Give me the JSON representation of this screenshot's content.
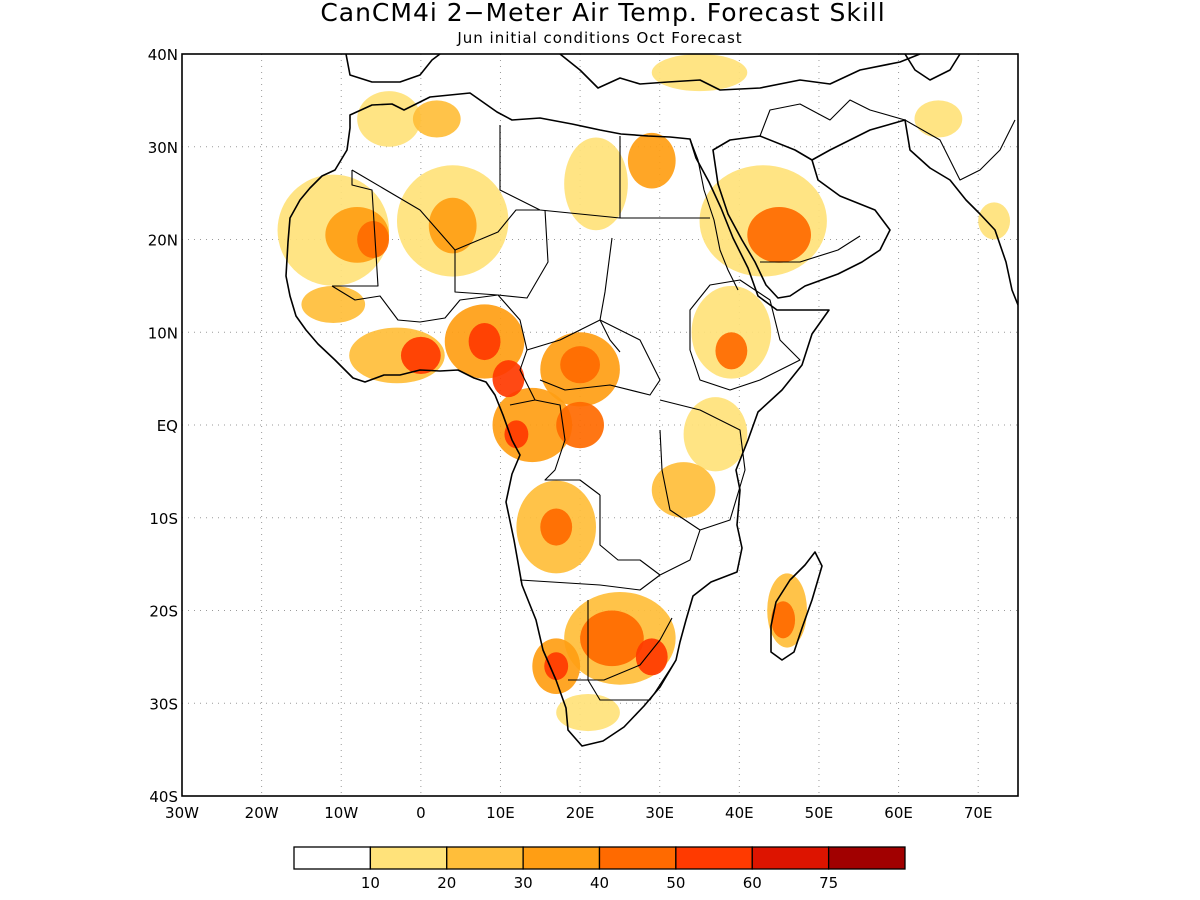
{
  "title": "CanCM4i 2−Meter Air Temp. Forecast Skill",
  "subtitle": "Jun initial conditions  Oct Forecast",
  "map": {
    "region": "Africa",
    "lon_range": [
      -30,
      75
    ],
    "lat_range": [
      -40,
      40
    ],
    "grid": true,
    "lon_ticks": [
      {
        "value": -30,
        "label": "30W"
      },
      {
        "value": -20,
        "label": "20W"
      },
      {
        "value": -10,
        "label": "10W"
      },
      {
        "value": 0,
        "label": "0"
      },
      {
        "value": 10,
        "label": "10E"
      },
      {
        "value": 20,
        "label": "20E"
      },
      {
        "value": 30,
        "label": "30E"
      },
      {
        "value": 40,
        "label": "40E"
      },
      {
        "value": 50,
        "label": "50E"
      },
      {
        "value": 60,
        "label": "60E"
      },
      {
        "value": 70,
        "label": "70E"
      }
    ],
    "lat_ticks": [
      {
        "value": 40,
        "label": "40N"
      },
      {
        "value": 30,
        "label": "30N"
      },
      {
        "value": 20,
        "label": "20N"
      },
      {
        "value": 10,
        "label": "10N"
      },
      {
        "value": 0,
        "label": "EQ"
      },
      {
        "value": -10,
        "label": "10S"
      },
      {
        "value": -20,
        "label": "20S"
      },
      {
        "value": -30,
        "label": "30S"
      },
      {
        "value": -40,
        "label": "40S"
      }
    ],
    "skill_regions": [
      {
        "lon": -11,
        "lat": 21,
        "level": 1,
        "rx": 7,
        "ry": 6
      },
      {
        "lon": -8,
        "lat": 20.5,
        "level": 3,
        "rx": 4,
        "ry": 3
      },
      {
        "lon": -6,
        "lat": 20,
        "level": 4,
        "rx": 2,
        "ry": 2
      },
      {
        "lon": 4,
        "lat": 22,
        "level": 1,
        "rx": 7,
        "ry": 6
      },
      {
        "lon": 4,
        "lat": 21.5,
        "level": 3,
        "rx": 3,
        "ry": 3
      },
      {
        "lon": -4,
        "lat": 33,
        "level": 1,
        "rx": 4,
        "ry": 3
      },
      {
        "lon": 2,
        "lat": 33,
        "level": 2,
        "rx": 3,
        "ry": 2
      },
      {
        "lon": 22,
        "lat": 26,
        "level": 1,
        "rx": 4,
        "ry": 5
      },
      {
        "lon": 29,
        "lat": 28.5,
        "level": 3,
        "rx": 3,
        "ry": 3
      },
      {
        "lon": 43,
        "lat": 22,
        "level": 1,
        "rx": 8,
        "ry": 6
      },
      {
        "lon": 45,
        "lat": 20.5,
        "level": 4,
        "rx": 4,
        "ry": 3
      },
      {
        "lon": 65,
        "lat": 33,
        "level": 1,
        "rx": 3,
        "ry": 2
      },
      {
        "lon": 72,
        "lat": 22,
        "level": 1,
        "rx": 2,
        "ry": 2
      },
      {
        "lon": 35,
        "lat": 38,
        "level": 1,
        "rx": 6,
        "ry": 2
      },
      {
        "lon": -3,
        "lat": 7.5,
        "level": 2,
        "rx": 6,
        "ry": 3
      },
      {
        "lon": 0,
        "lat": 7.5,
        "level": 5,
        "rx": 2.5,
        "ry": 2
      },
      {
        "lon": -11,
        "lat": 13,
        "level": 2,
        "rx": 4,
        "ry": 2
      },
      {
        "lon": 8,
        "lat": 9,
        "level": 3,
        "rx": 5,
        "ry": 4
      },
      {
        "lon": 8,
        "lat": 9,
        "level": 5,
        "rx": 2,
        "ry": 2
      },
      {
        "lon": 11,
        "lat": 5,
        "level": 5,
        "rx": 2,
        "ry": 2
      },
      {
        "lon": 20,
        "lat": 6,
        "level": 3,
        "rx": 5,
        "ry": 4
      },
      {
        "lon": 20,
        "lat": 6.5,
        "level": 4,
        "rx": 2.5,
        "ry": 2
      },
      {
        "lon": 14,
        "lat": 0,
        "level": 3,
        "rx": 5,
        "ry": 4
      },
      {
        "lon": 20,
        "lat": 0,
        "level": 4,
        "rx": 3,
        "ry": 2.5
      },
      {
        "lon": 12,
        "lat": -1,
        "level": 5,
        "rx": 1.5,
        "ry": 1.5
      },
      {
        "lon": 39,
        "lat": 10,
        "level": 1,
        "rx": 5,
        "ry": 5
      },
      {
        "lon": 39,
        "lat": 8,
        "level": 4,
        "rx": 2,
        "ry": 2
      },
      {
        "lon": 37,
        "lat": -1,
        "level": 1,
        "rx": 4,
        "ry": 4
      },
      {
        "lon": 33,
        "lat": -7,
        "level": 2,
        "rx": 4,
        "ry": 3
      },
      {
        "lon": 17,
        "lat": -11,
        "level": 2,
        "rx": 5,
        "ry": 5
      },
      {
        "lon": 17,
        "lat": -11,
        "level": 4,
        "rx": 2,
        "ry": 2
      },
      {
        "lon": 25,
        "lat": -23,
        "level": 2,
        "rx": 7,
        "ry": 5
      },
      {
        "lon": 24,
        "lat": -23,
        "level": 4,
        "rx": 4,
        "ry": 3
      },
      {
        "lon": 29,
        "lat": -25,
        "level": 5,
        "rx": 2,
        "ry": 2
      },
      {
        "lon": 17,
        "lat": -26,
        "level": 3,
        "rx": 3,
        "ry": 3
      },
      {
        "lon": 17,
        "lat": -26,
        "level": 5,
        "rx": 1.5,
        "ry": 1.5
      },
      {
        "lon": 21,
        "lat": -31,
        "level": 1,
        "rx": 4,
        "ry": 2
      },
      {
        "lon": 46,
        "lat": -20,
        "level": 2,
        "rx": 2.5,
        "ry": 4
      },
      {
        "lon": 45.5,
        "lat": -21,
        "level": 4,
        "rx": 1.5,
        "ry": 2
      }
    ]
  },
  "colorbar": {
    "colors": [
      "#ffffff",
      "#ffe27a",
      "#ffbe3a",
      "#ff9e14",
      "#ff6a00",
      "#ff3a00",
      "#dd1400",
      "#a10000"
    ],
    "labels": [
      "10",
      "20",
      "30",
      "40",
      "50",
      "60",
      "75"
    ]
  }
}
